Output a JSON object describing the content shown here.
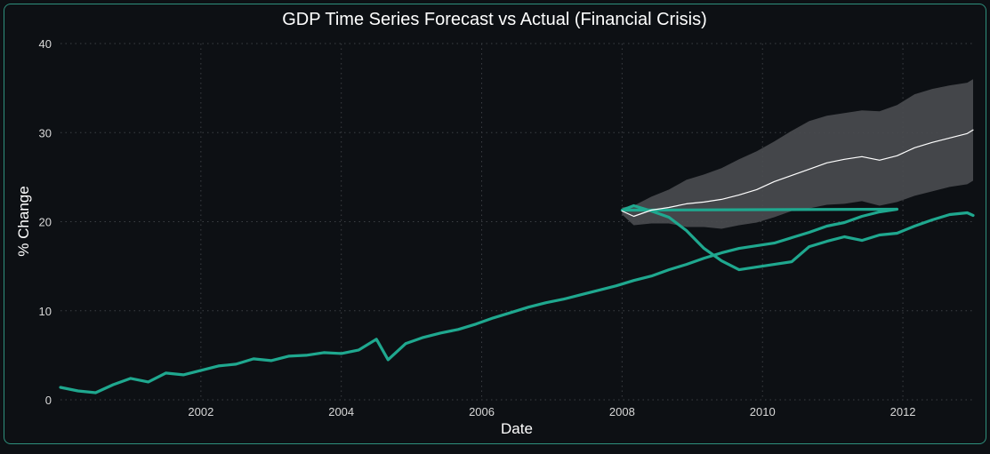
{
  "chart_data": {
    "type": "line",
    "title": "GDP Time Series Forecast vs Actual (Financial Crisis)",
    "xlabel": "Date",
    "ylabel": "% Change",
    "xlim": [
      "2000-01",
      "2013-01"
    ],
    "ylim": [
      0,
      40
    ],
    "x_ticks": [
      "2002",
      "2004",
      "2006",
      "2008",
      "2010",
      "2012"
    ],
    "y_ticks": [
      "0",
      "10",
      "20",
      "30",
      "40"
    ],
    "grid": true,
    "colors": {
      "actual": "#1fa88f",
      "forecast": "#ffffff",
      "band": "#4a4c50",
      "background": "#0d1014",
      "border": "#2e8f7c"
    },
    "series": [
      {
        "role": "actual",
        "points": [
          [
            "2000-01",
            1.4
          ],
          [
            "2000-04",
            1.0
          ],
          [
            "2000-07",
            0.8
          ],
          [
            "2000-10",
            1.7
          ],
          [
            "2001-01",
            2.4
          ],
          [
            "2001-04",
            2.0
          ],
          [
            "2001-07",
            3.0
          ],
          [
            "2001-10",
            2.8
          ],
          [
            "2002-01",
            3.3
          ],
          [
            "2002-04",
            3.8
          ],
          [
            "2002-07",
            4.0
          ],
          [
            "2002-10",
            4.6
          ],
          [
            "2003-01",
            4.4
          ],
          [
            "2003-04",
            4.9
          ],
          [
            "2003-07",
            5.0
          ],
          [
            "2003-10",
            5.3
          ],
          [
            "2004-01",
            5.2
          ],
          [
            "2004-04",
            5.6
          ],
          [
            "2004-07",
            6.8
          ],
          [
            "2004-09",
            4.5
          ],
          [
            "2004-12",
            6.3
          ],
          [
            "2005-03",
            7.0
          ],
          [
            "2005-06",
            7.5
          ],
          [
            "2005-09",
            7.9
          ],
          [
            "2005-12",
            8.5
          ],
          [
            "2006-03",
            9.2
          ],
          [
            "2006-06",
            9.8
          ],
          [
            "2006-09",
            10.4
          ],
          [
            "2006-12",
            10.9
          ],
          [
            "2007-03",
            11.3
          ],
          [
            "2007-06",
            11.8
          ],
          [
            "2007-09",
            12.3
          ],
          [
            "2007-12",
            12.8
          ],
          [
            "2008-03",
            13.4
          ],
          [
            "2008-06",
            13.9
          ],
          [
            "2008-09",
            14.6
          ],
          [
            "2008-12",
            15.2
          ],
          [
            "2009-03",
            15.9
          ],
          [
            "2009-06",
            16.5
          ],
          [
            "2009-09",
            17.0
          ],
          [
            "2009-12",
            17.3
          ],
          [
            "2010-03",
            17.6
          ],
          [
            "2010-06",
            18.2
          ],
          [
            "2010-09",
            18.8
          ],
          [
            "2010-12",
            19.5
          ],
          [
            "2011-03",
            19.9
          ],
          [
            "2011-06",
            20.6
          ],
          [
            "2011-09",
            21.1
          ],
          [
            "2011-12",
            21.4
          ],
          [
            "2008-01",
            21.3
          ],
          [
            "2008-03",
            21.8
          ],
          [
            "2008-06",
            21.2
          ],
          [
            "2008-09",
            20.5
          ],
          [
            "2008-12",
            19.0
          ],
          [
            "2009-03",
            17.0
          ],
          [
            "2009-06",
            15.6
          ],
          [
            "2009-09",
            14.6
          ],
          [
            "2009-12",
            14.9
          ],
          [
            "2010-03",
            15.2
          ],
          [
            "2010-06",
            15.5
          ],
          [
            "2010-09",
            17.2
          ],
          [
            "2010-12",
            17.8
          ],
          [
            "2011-03",
            18.3
          ],
          [
            "2011-06",
            17.9
          ],
          [
            "2011-09",
            18.5
          ],
          [
            "2011-12",
            18.7
          ],
          [
            "2012-03",
            19.5
          ],
          [
            "2012-06",
            20.2
          ],
          [
            "2012-09",
            20.8
          ],
          [
            "2012-12",
            21.0
          ],
          [
            "2013-01",
            20.7
          ]
        ]
      },
      {
        "role": "forecast",
        "points": [
          [
            "2008-01",
            21.2
          ],
          [
            "2008-03",
            20.6
          ],
          [
            "2008-06",
            21.3
          ],
          [
            "2008-09",
            21.6
          ],
          [
            "2008-12",
            22.0
          ],
          [
            "2009-03",
            22.2
          ],
          [
            "2009-06",
            22.5
          ],
          [
            "2009-09",
            23.0
          ],
          [
            "2009-12",
            23.6
          ],
          [
            "2010-03",
            24.5
          ],
          [
            "2010-06",
            25.2
          ],
          [
            "2010-09",
            25.9
          ],
          [
            "2010-12",
            26.6
          ],
          [
            "2011-03",
            27.0
          ],
          [
            "2011-06",
            27.3
          ],
          [
            "2011-09",
            26.9
          ],
          [
            "2011-12",
            27.4
          ],
          [
            "2012-03",
            28.3
          ],
          [
            "2012-06",
            28.9
          ],
          [
            "2012-09",
            29.4
          ],
          [
            "2012-12",
            29.9
          ],
          [
            "2013-01",
            30.3
          ]
        ]
      }
    ],
    "band": {
      "x": [
        "2008-01",
        "2008-03",
        "2008-06",
        "2008-09",
        "2008-12",
        "2009-03",
        "2009-06",
        "2009-09",
        "2009-12",
        "2010-03",
        "2010-06",
        "2010-09",
        "2010-12",
        "2011-03",
        "2011-06",
        "2011-09",
        "2011-12",
        "2012-03",
        "2012-06",
        "2012-09",
        "2012-12",
        "2013-01"
      ],
      "upper": [
        21.6,
        21.8,
        22.8,
        23.6,
        24.7,
        25.3,
        26.0,
        27.0,
        27.9,
        29.0,
        30.2,
        31.3,
        31.9,
        32.2,
        32.5,
        32.4,
        33.1,
        34.3,
        34.9,
        35.3,
        35.6,
        36.0
      ],
      "lower": [
        20.8,
        19.6,
        19.8,
        19.8,
        19.4,
        19.4,
        19.2,
        19.6,
        19.9,
        20.5,
        21.2,
        21.5,
        21.9,
        22.0,
        22.3,
        21.8,
        22.2,
        22.9,
        23.4,
        23.9,
        24.2,
        24.6
      ]
    }
  }
}
